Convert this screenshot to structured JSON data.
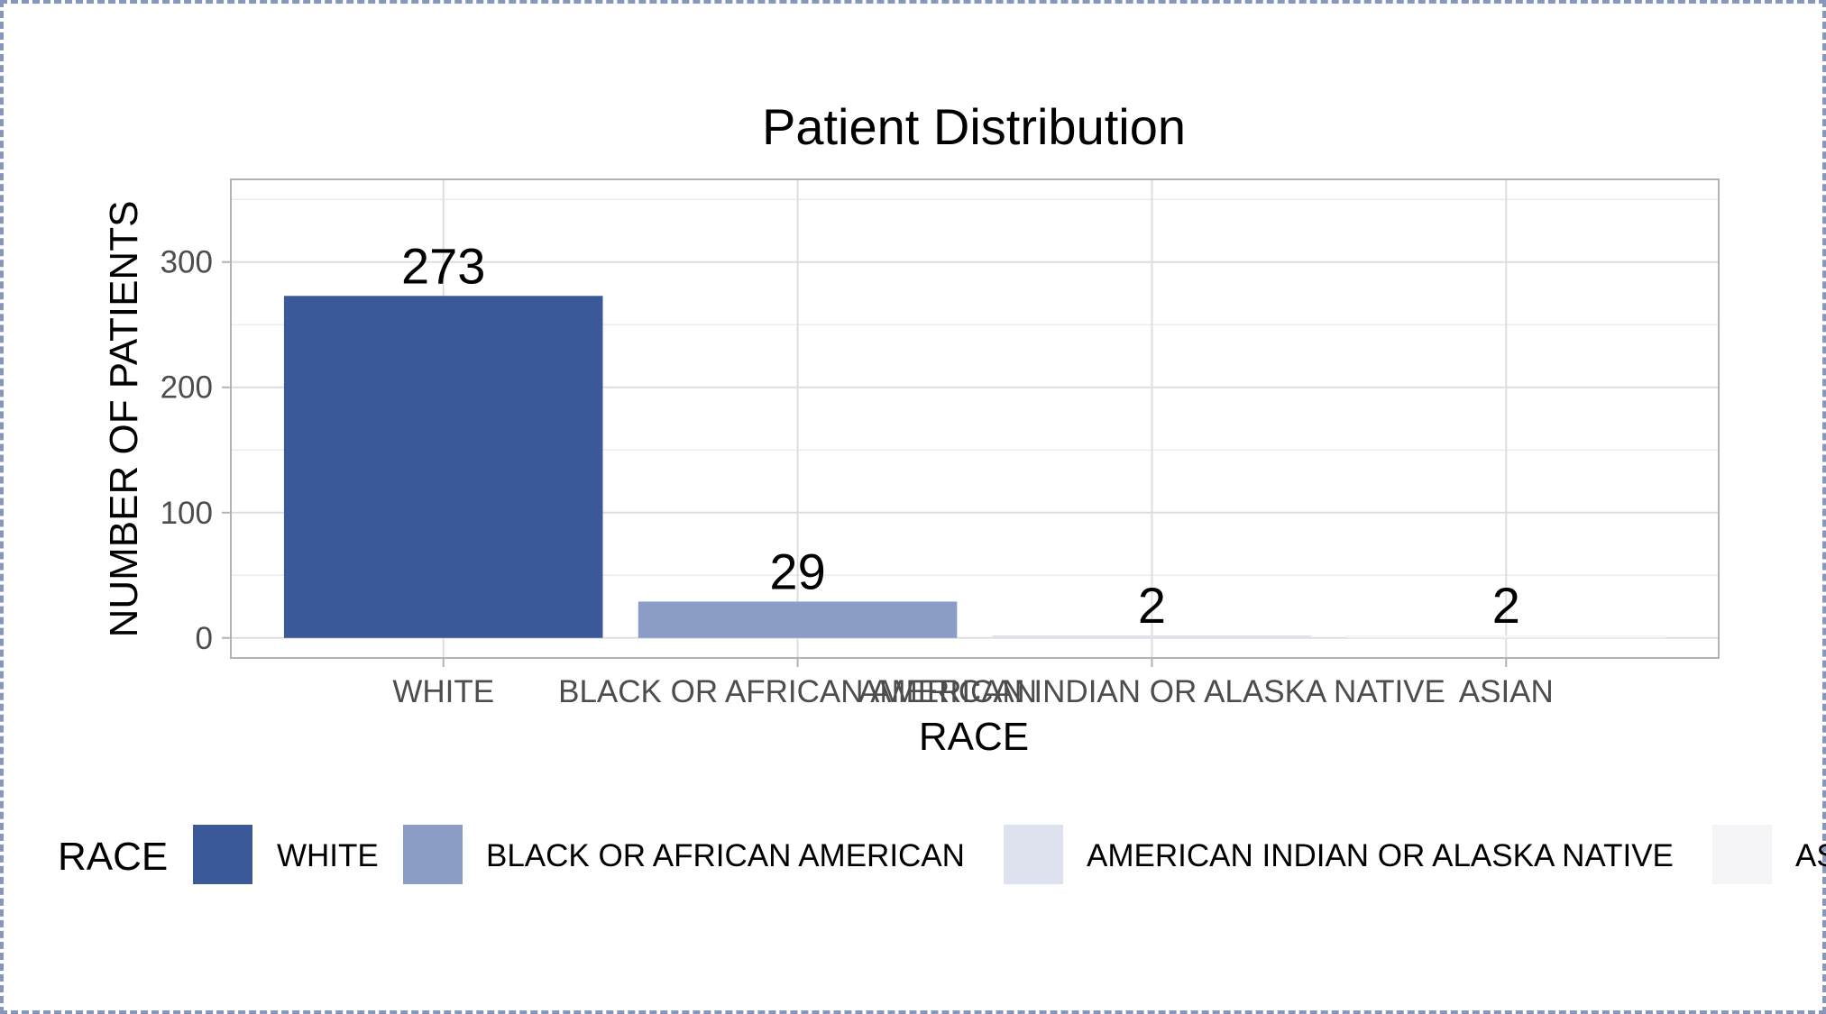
{
  "chart_data": {
    "type": "bar",
    "title": "Patient Distribution",
    "xlabel": "RACE",
    "ylabel": "NUMBER OF PATIENTS",
    "categories": [
      "WHITE",
      "BLACK OR AFRICAN AMERICAN",
      "AMERICAN INDIAN OR ALASKA NATIVE",
      "ASIAN"
    ],
    "values": [
      273,
      29,
      2,
      2
    ],
    "data_labels": [
      "273",
      "29",
      "2",
      "2"
    ],
    "colors": [
      "#3b5998",
      "#8b9dc6",
      "#dee2ee",
      "#f5f5f7"
    ],
    "ylim": [
      -16,
      366
    ],
    "yticks": [
      0,
      100,
      200,
      300
    ],
    "ytick_labels": [
      "0",
      "100",
      "200",
      "300"
    ],
    "grid": true,
    "legend": {
      "title": "RACE",
      "position": "bottom",
      "labels": [
        "WHITE",
        "BLACK OR AFRICAN AMERICAN",
        "AMERICAN INDIAN OR ALASKA NATIVE",
        "ASIAN"
      ]
    }
  }
}
